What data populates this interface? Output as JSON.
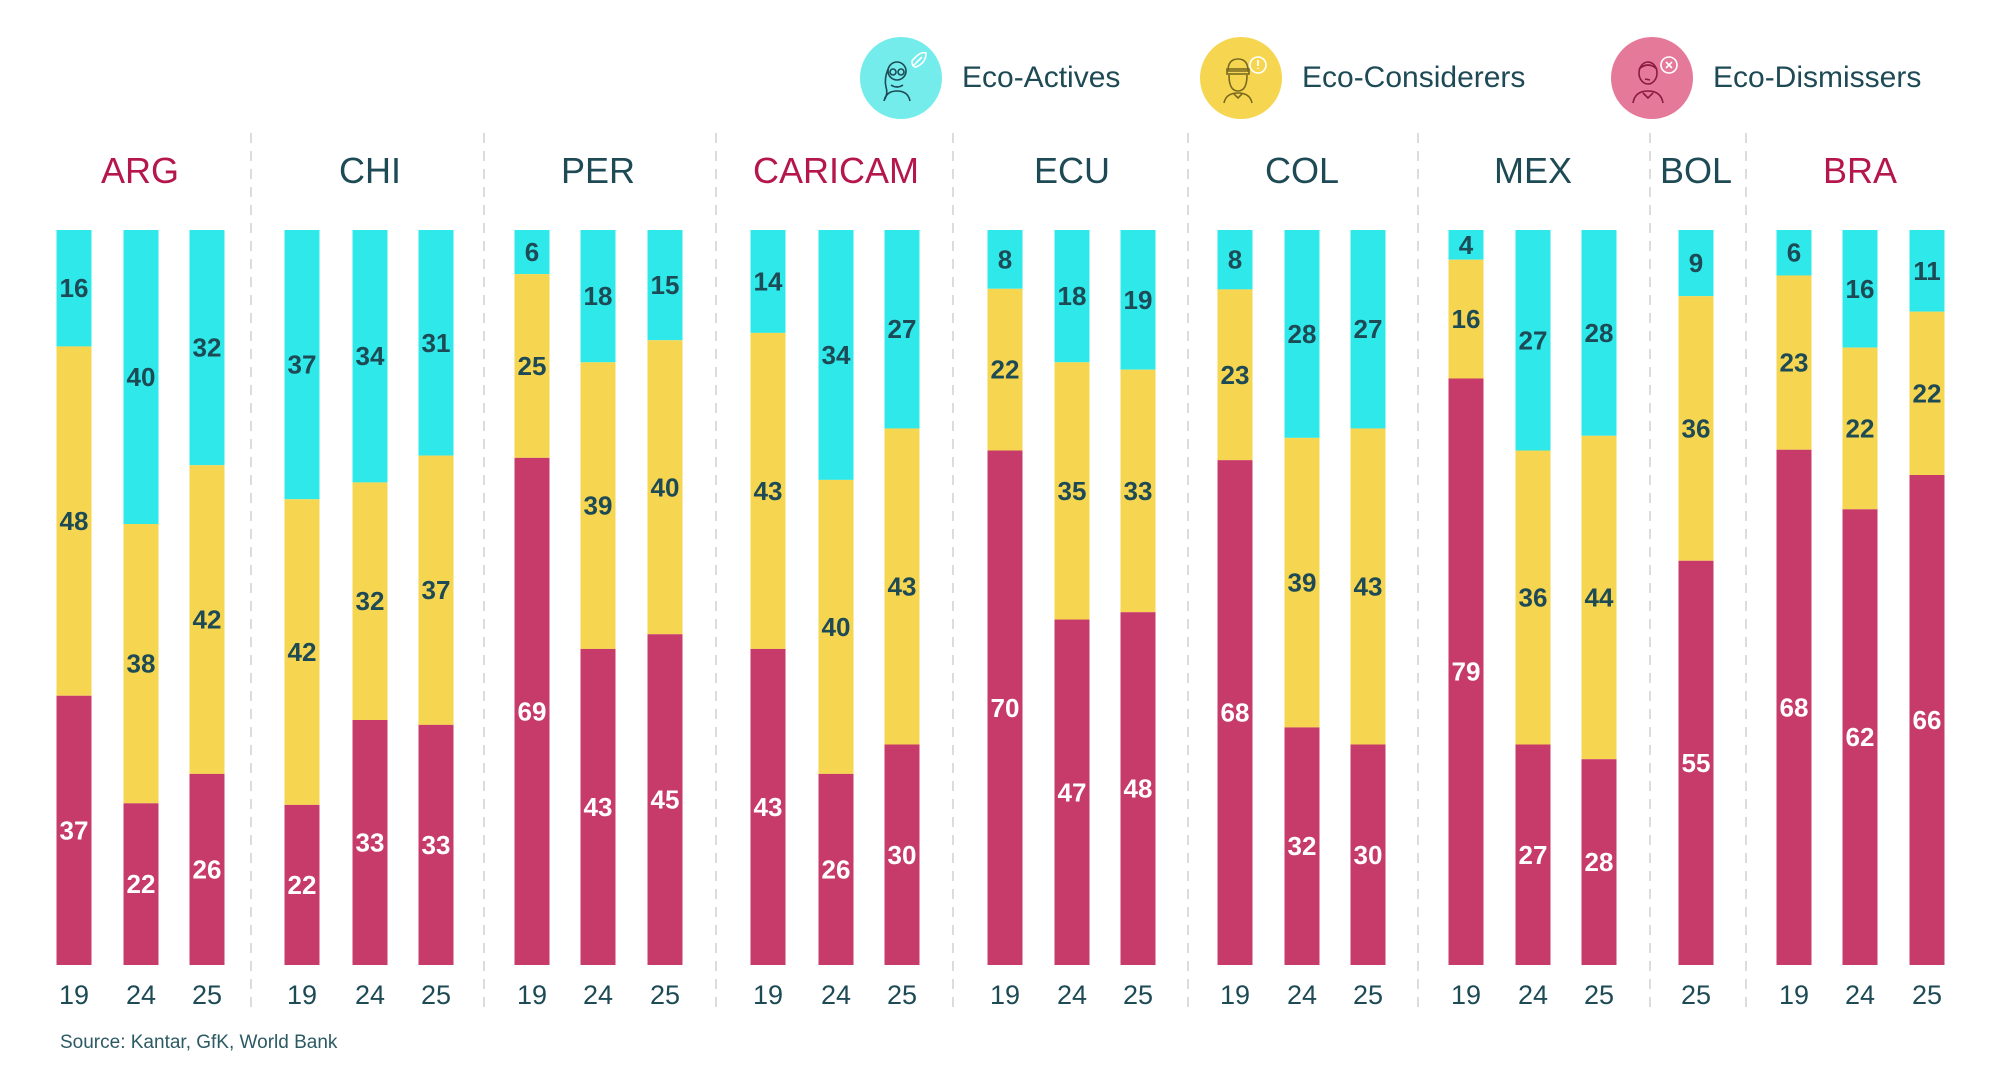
{
  "legend": [
    {
      "key": "actives",
      "label": "Eco-Actives",
      "color": "#2ee8ea",
      "circle_color": "#75ecec",
      "icon": "woman-with-leaf-icon"
    },
    {
      "key": "considerers",
      "label": "Eco-Considerers",
      "color": "#f6d650",
      "circle_color": "#f6d650",
      "icon": "bearded-man-with-exclamation-icon"
    },
    {
      "key": "dismissers",
      "label": "Eco-Dismissers",
      "color": "#c73b6a",
      "circle_color": "#e5799a",
      "icon": "man-with-x-badge-icon"
    }
  ],
  "source": "Source: Kantar, GfK, World Bank",
  "chart_data": {
    "type": "bar",
    "stacked": true,
    "orientation": "vertical",
    "unit": "%",
    "ylim": [
      0,
      100
    ],
    "grid": false,
    "legend_position": "top-right",
    "series_order_bottom_to_top": [
      "Eco-Dismissers",
      "Eco-Considerers",
      "Eco-Actives"
    ],
    "groups": [
      {
        "name": "ARG",
        "highlight": true,
        "bars": [
          {
            "year": "19",
            "actives": 16,
            "considerers": 48,
            "dismissers": 37
          },
          {
            "year": "24",
            "actives": 40,
            "considerers": 38,
            "dismissers": 22
          },
          {
            "year": "25",
            "actives": 32,
            "considerers": 42,
            "dismissers": 26
          }
        ]
      },
      {
        "name": "CHI",
        "highlight": false,
        "bars": [
          {
            "year": "19",
            "actives": 37,
            "considerers": 42,
            "dismissers": 22
          },
          {
            "year": "24",
            "actives": 34,
            "considerers": 32,
            "dismissers": 33
          },
          {
            "year": "25",
            "actives": 31,
            "considerers": 37,
            "dismissers": 33
          }
        ]
      },
      {
        "name": "PER",
        "highlight": false,
        "bars": [
          {
            "year": "19",
            "actives": 6,
            "considerers": 25,
            "dismissers": 69
          },
          {
            "year": "24",
            "actives": 18,
            "considerers": 39,
            "dismissers": 43
          },
          {
            "year": "25",
            "actives": 15,
            "considerers": 40,
            "dismissers": 45
          }
        ]
      },
      {
        "name": "CARICAM",
        "highlight": true,
        "bars": [
          {
            "year": "19",
            "actives": 14,
            "considerers": 43,
            "dismissers": 43
          },
          {
            "year": "24",
            "actives": 34,
            "considerers": 40,
            "dismissers": 26
          },
          {
            "year": "25",
            "actives": 27,
            "considerers": 43,
            "dismissers": 30
          }
        ]
      },
      {
        "name": "ECU",
        "highlight": false,
        "bars": [
          {
            "year": "19",
            "actives": 8,
            "considerers": 22,
            "dismissers": 70
          },
          {
            "year": "24",
            "actives": 18,
            "considerers": 35,
            "dismissers": 47
          },
          {
            "year": "25",
            "actives": 19,
            "considerers": 33,
            "dismissers": 48
          }
        ]
      },
      {
        "name": "COL",
        "highlight": false,
        "bars": [
          {
            "year": "19",
            "actives": 8,
            "considerers": 23,
            "dismissers": 68
          },
          {
            "year": "24",
            "actives": 28,
            "considerers": 39,
            "dismissers": 32
          },
          {
            "year": "25",
            "actives": 27,
            "considerers": 43,
            "dismissers": 30
          }
        ]
      },
      {
        "name": "MEX",
        "highlight": false,
        "bars": [
          {
            "year": "19",
            "actives": 4,
            "considerers": 16,
            "dismissers": 79
          },
          {
            "year": "24",
            "actives": 27,
            "considerers": 36,
            "dismissers": 27
          },
          {
            "year": "25",
            "actives": 28,
            "considerers": 44,
            "dismissers": 28
          }
        ]
      },
      {
        "name": "BOL",
        "highlight": false,
        "bars": [
          {
            "year": "25",
            "actives": 9,
            "considerers": 36,
            "dismissers": 55
          }
        ]
      },
      {
        "name": "BRA",
        "highlight": true,
        "bars": [
          {
            "year": "19",
            "actives": 6,
            "considerers": 23,
            "dismissers": 68
          },
          {
            "year": "24",
            "actives": 16,
            "considerers": 22,
            "dismissers": 62
          },
          {
            "year": "25",
            "actives": 11,
            "considerers": 22,
            "dismissers": 66
          }
        ]
      }
    ],
    "colors": {
      "header_highlight": "#b5164b",
      "header_normal": "#1d4a55",
      "label_dark": "#1d4a55",
      "label_light": "#ffffff",
      "separator": "#d0d0d0"
    }
  }
}
